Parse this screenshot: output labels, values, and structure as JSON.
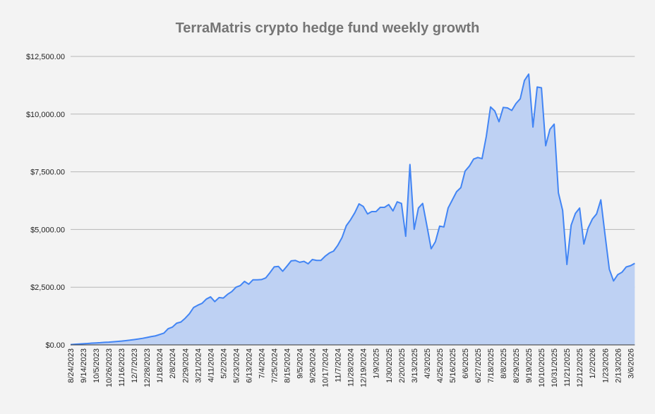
{
  "chart_data": {
    "type": "area",
    "title": "TerraMatris crypto hedge fund weekly growth",
    "xlabel": "",
    "ylabel": "",
    "ylim": [
      0,
      12500
    ],
    "y_ticks": [
      "$0.00",
      "$2,500.00",
      "$5,000.00",
      "$7,500.00",
      "$10,000.00",
      "$12,500.00"
    ],
    "y_tick_values": [
      0,
      2500,
      5000,
      7500,
      10000,
      12500
    ],
    "grid": true,
    "legend": "none",
    "colors": {
      "line": "#4285f4",
      "fill": "#bed1f3",
      "grid": "#b7b7b7",
      "title": "#757575",
      "background": "#f3f3f3"
    },
    "x": [
      "8/24/2023",
      "8/31/2023",
      "9/7/2023",
      "9/14/2023",
      "9/21/2023",
      "9/28/2023",
      "10/5/2023",
      "10/12/2023",
      "10/19/2023",
      "10/26/2023",
      "11/2/2023",
      "11/9/2023",
      "11/16/2023",
      "11/23/2023",
      "11/30/2023",
      "12/7/2023",
      "12/14/2023",
      "12/21/2023",
      "12/28/2023",
      "1/4/2024",
      "1/11/2024",
      "1/18/2024",
      "1/25/2024",
      "2/1/2024",
      "2/8/2024",
      "2/15/2024",
      "2/22/2024",
      "2/29/2024",
      "3/7/2024",
      "3/14/2024",
      "3/21/2024",
      "3/28/2024",
      "4/4/2024",
      "4/11/2024",
      "4/18/2024",
      "4/25/2024",
      "5/2/2024",
      "5/9/2024",
      "5/16/2024",
      "5/23/2024",
      "5/30/2024",
      "6/6/2024",
      "6/13/2024",
      "6/20/2024",
      "6/27/2024",
      "7/4/2024",
      "7/11/2024",
      "7/18/2024",
      "7/25/2024",
      "8/1/2024",
      "8/8/2024",
      "8/15/2024",
      "8/22/2024",
      "8/29/2024",
      "9/5/2024",
      "9/12/2024",
      "9/19/2024",
      "9/26/2024",
      "10/3/2024",
      "10/10/2024",
      "10/17/2024",
      "10/24/2024",
      "10/31/2024",
      "11/7/2024",
      "11/14/2024",
      "11/21/2024",
      "11/28/2024",
      "12/5/2024",
      "12/12/2024",
      "12/19/2024",
      "12/26/2024",
      "1/2/2025",
      "1/9/2025",
      "1/16/2025",
      "1/23/2025",
      "1/30/2025",
      "2/6/2025",
      "2/13/2025",
      "2/20/2025",
      "2/27/2025",
      "3/6/2025",
      "3/13/2025",
      "3/20/2025",
      "3/27/2025",
      "4/3/2025",
      "4/11/2025",
      "4/18/2025",
      "4/25/2025",
      "5/2/2025",
      "5/9/2025",
      "5/16/2025",
      "5/23/2025",
      "5/30/2025",
      "6/6/2025",
      "6/13/2025",
      "6/20/2025",
      "6/27/2025",
      "7/4/2025",
      "7/11/2025",
      "7/18/2025",
      "7/25/2025",
      "8/1/2025",
      "8/8/2025",
      "8/15/2025",
      "8/22/2025",
      "8/29/2025",
      "9/5/2025",
      "9/12/2025",
      "9/19/2025",
      "9/26/2025",
      "10/3/2025",
      "10/10/2025",
      "10/17/2025",
      "10/24/2025",
      "10/31/2025",
      "11/7/2025",
      "11/14/2025",
      "11/21/2025",
      "11/28/2025",
      "12/5/2025",
      "12/12/2025",
      "12/19/2025",
      "12/26/2025",
      "1/2/2026",
      "1/9/2026",
      "1/16/2026",
      "1/23/2026",
      "1/30/2026",
      "2/6/2026",
      "2/13/2026",
      "2/20/2026",
      "2/27/2026",
      "3/6/2026",
      "3/13/2026"
    ],
    "x_tick_every": 3,
    "values": [
      10,
      25,
      40,
      50,
      60,
      75,
      85,
      95,
      110,
      120,
      135,
      150,
      165,
      185,
      205,
      230,
      255,
      285,
      320,
      360,
      390,
      450,
      510,
      700,
      770,
      940,
      990,
      1150,
      1345,
      1620,
      1720,
      1800,
      1985,
      2080,
      1875,
      2050,
      2030,
      2190,
      2310,
      2500,
      2570,
      2750,
      2630,
      2820,
      2820,
      2830,
      2900,
      3130,
      3380,
      3400,
      3190,
      3410,
      3640,
      3660,
      3580,
      3620,
      3515,
      3700,
      3660,
      3660,
      3840,
      3980,
      4065,
      4320,
      4655,
      5165,
      5420,
      5725,
      6110,
      6000,
      5675,
      5775,
      5775,
      5960,
      5960,
      6080,
      5805,
      6200,
      6130,
      4705,
      7815,
      5010,
      5930,
      6130,
      5165,
      4165,
      4470,
      5145,
      5110,
      5930,
      6285,
      6640,
      6815,
      7530,
      7745,
      8050,
      8120,
      8070,
      9035,
      10310,
      10135,
      9670,
      10290,
      10270,
      10160,
      10460,
      10665,
      11460,
      11735,
      9440,
      11175,
      11140,
      8630,
      9340,
      9565,
      6590,
      5825,
      3485,
      5185,
      5695,
      5930,
      4370,
      5065,
      5450,
      5675,
      6285,
      4760,
      3280,
      2770,
      3045,
      3150,
      3380,
      3430,
      3535
    ]
  }
}
